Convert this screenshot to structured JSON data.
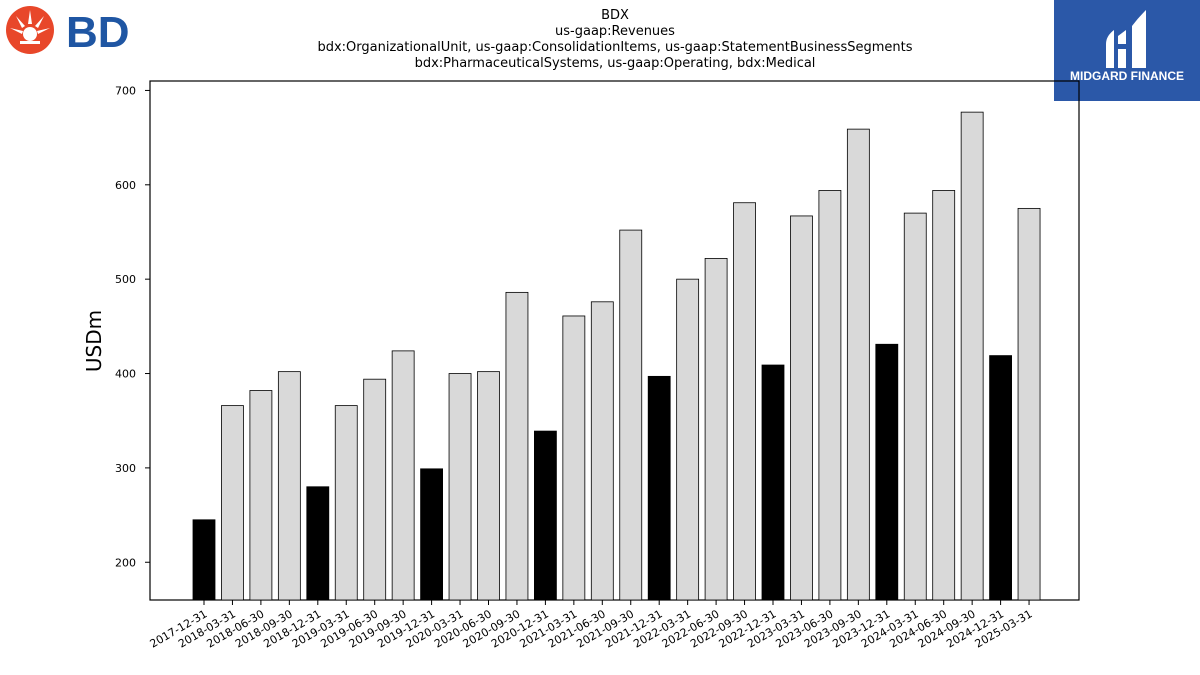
{
  "header": {
    "title_lines": [
      "BDX",
      "us-gaap:Revenues",
      "bdx:OrganizationalUnit, us-gaap:ConsolidationItems, us-gaap:StatementBusinessSegments",
      "bdx:PharmaceuticalSystems, us-gaap:Operating, bdx:Medical"
    ]
  },
  "logos": {
    "left": {
      "text": "BD",
      "color": "#1f56a3",
      "icon_color": "#e8472a"
    },
    "right": {
      "text": "MIDGARD FINANCE",
      "background": "#2b58a8"
    }
  },
  "chart_data": {
    "type": "bar",
    "title": "BDX",
    "ylabel": "USDm",
    "xlabel": "",
    "ylim": [
      160,
      710
    ],
    "yticks": [
      200,
      300,
      400,
      500,
      600,
      700
    ],
    "grid": false,
    "colors": {
      "q4_bar": "#000000",
      "other_bar": "#d9d9d9",
      "edge": "#000000"
    },
    "categories": [
      "2017-12-31",
      "2018-03-31",
      "2018-06-30",
      "2018-09-30",
      "2018-12-31",
      "2019-03-31",
      "2019-06-30",
      "2019-09-30",
      "2019-12-31",
      "2020-03-31",
      "2020-06-30",
      "2020-09-30",
      "2020-12-31",
      "2021-03-31",
      "2021-06-30",
      "2021-09-30",
      "2021-12-31",
      "2022-03-31",
      "2022-06-30",
      "2022-09-30",
      "2022-12-31",
      "2023-03-31",
      "2023-06-30",
      "2023-09-30",
      "2023-12-31",
      "2024-03-31",
      "2024-06-30",
      "2024-09-30",
      "2024-12-31",
      "2025-03-31"
    ],
    "values": [
      245,
      366,
      382,
      402,
      280,
      366,
      394,
      424,
      299,
      400,
      402,
      486,
      339,
      461,
      476,
      552,
      397,
      500,
      522,
      581,
      409,
      567,
      594,
      659,
      431,
      570,
      594,
      677,
      419,
      575
    ],
    "highlighted": [
      true,
      false,
      false,
      false,
      true,
      false,
      false,
      false,
      true,
      false,
      false,
      false,
      true,
      false,
      false,
      false,
      true,
      false,
      false,
      false,
      true,
      false,
      false,
      false,
      true,
      false,
      false,
      false,
      true,
      false
    ]
  }
}
